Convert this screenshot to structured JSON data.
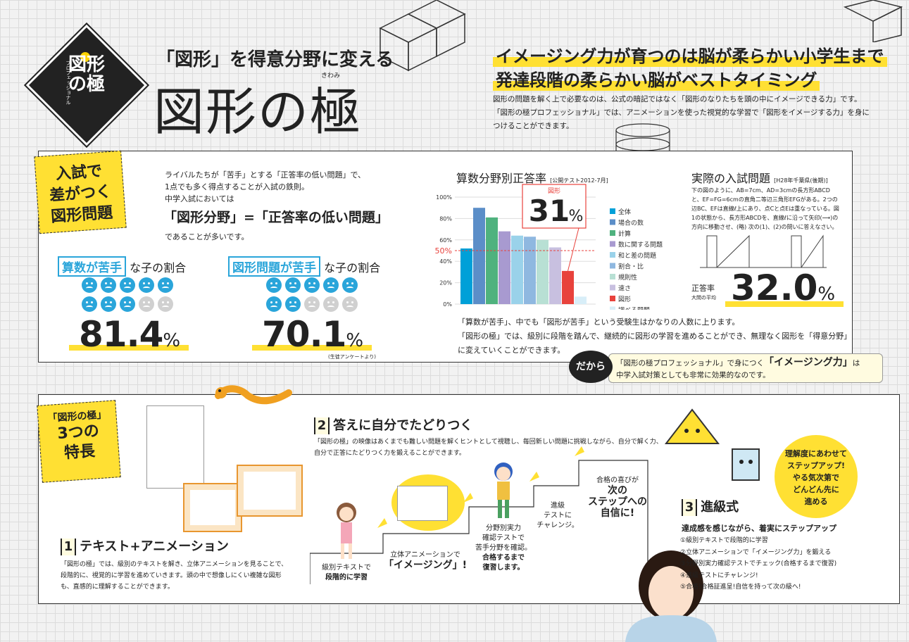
{
  "header": {
    "logo_top": "プロフェッショナル",
    "logo_main": "図形の極",
    "logo_ruby": "きわみ",
    "subtitle": "「図形」を得意分野に変える",
    "title": "図形の極",
    "title_ruby": "きわみ",
    "headline_1": "イメージング力が育つのは脳が柔らかい小学生まで",
    "headline_2": "発達段階の柔らかい脳がベストタイミング",
    "body_1": "図形の問題を解く上で必要なのは、公式の暗記ではなく「図形のなりたちを頭の中にイメージできる力」です。",
    "body_2": "「図形の極プロフェッショナル」では、アニメーションを使った視覚的な学習で「図形をイメージする力」を身につけることができます。"
  },
  "section1": {
    "tag_line1": "入試で",
    "tag_line2": "差がつく",
    "tag_line3": "図形問題",
    "intro_1": "ライバルたちが「苦手」とする「正答率の低い問題」で、",
    "intro_2": "1点でも多く得点することが入試の鉄則。",
    "intro_3": "中学入試においては",
    "formula": "「図形分野」=「正答率の低い問題」",
    "intro_after": "であることが多いです。",
    "ratio1_box": "算数が苦手",
    "ratio1_suffix": "な子の割合",
    "ratio1_value": "81.4",
    "ratio2_box": "図形問題が苦手",
    "ratio2_suffix": "な子の割合",
    "ratio2_value": "70.1",
    "percent": "%",
    "survey_note": "(生徒アンケートより)"
  },
  "chart_data": {
    "type": "bar",
    "title": "算数分野別正答率",
    "subtitle": "[公開テスト2012-7月]",
    "categories": [
      "全体",
      "場合の数",
      "計算",
      "数に関する問題",
      "和と差の問題",
      "割合・比",
      "規則性",
      "速さ",
      "図形",
      "調べる問題"
    ],
    "values": [
      52,
      90,
      81,
      68,
      64,
      63,
      60,
      53,
      31,
      7
    ],
    "colors": [
      "#00a0d8",
      "#5b8ec8",
      "#4fb27e",
      "#a89ad0",
      "#9ad2ea",
      "#8fb8e0",
      "#b8e0d4",
      "#c8c0e0",
      "#e8423c",
      "#d8eef8"
    ],
    "ylim": [
      0,
      100
    ],
    "yticks": [
      "0%",
      "20%",
      "40%",
      "60%",
      "80%",
      "100%"
    ],
    "reference_line": {
      "value": 50,
      "label": "50%"
    },
    "highlight": {
      "label": "図形",
      "value": "31",
      "unit": "%"
    },
    "legend_position": "right"
  },
  "chart_note": {
    "line1": "「算数が苦手」、中でも「図形が苦手」という受験生はかなりの人数に上ります。",
    "line2": "「図形の極」では、級別に段階を踏んで、継続的に図形の学習を進めることができ、無理なく図形を「得意分野」に変えていくことができます。"
  },
  "exam": {
    "title": "実際の入試問題",
    "title_note": "[H28年千葉県(後期)]",
    "text": "下の図のように、AB=7cm、AD=3cmの長方形ABCDと、EF=FG=6cmの直角二等辺三角形EFGがある。2つの辺BC、EFは直線ℓ上にあり、点Cと点Eは重なっている。図1の状態から、長方形ABCDを、直線ℓに沿って矢印(⟶)の方向に移動させ、(略) 次の(1)、(2)の問いに答えなさい。",
    "rate_label": "正答率",
    "rate_sub": "大問の平均",
    "rate_value": "32.0"
  },
  "dakara": {
    "badge": "だから",
    "text_pre": "「図形の極プロフェッショナル」で身につく",
    "text_bold": "「イメージング力」",
    "text_post": "は",
    "text_line2": "中学入試対策としても非常に効果的なのです。"
  },
  "section2": {
    "tag_line1": "「図形の極」",
    "tag_line2": "3つの",
    "tag_line3": "特長",
    "f1_num": "1",
    "f1_title": "テキスト+アニメーション",
    "f1_body": "「図形の極」では、級別のテキストを解き、立体アニメーションを見ることで、段階的に、視覚的に学習を進めていきます。頭の中で想像しにくい複雑な図形も、直感的に理解することができます。",
    "f2_num": "2",
    "f2_title": "答えに自分でたどりつく",
    "f2_body": "「図形の極」の映像はあくまでも難しい問題を解くヒントとして視聴し、毎回新しい問題に挑戦しながら、自分で解く力、自分で正答にたどりつく力を鍛えることができます。",
    "f3_num": "3",
    "f3_title": "進級式",
    "f3_sub": "達成感を感じながら、着実にステップアップ",
    "f3_items": [
      "①級別テキストで段階的に学習",
      "②立体アニメーションで「イメージング力」を鍛える",
      "③分野別実力確認テストでチェック(合格するまで復習)",
      "④進級テストにチャレンジ!",
      "⑤合格!合格証進呈!自信を持って次の級へ!"
    ],
    "badge_line1": "理解度にあわせて",
    "badge_line2": "ステップアップ!",
    "badge_line3": "やる気次第で",
    "badge_line4": "どんどん先に",
    "badge_line5": "進める",
    "step1_a": "級別テキストで",
    "step1_b": "段階的に学習",
    "step2_a": "立体アニメーションで",
    "step2_b": "「イメージング」!",
    "step3_a": "分野別実力",
    "step3_b": "確認テストで",
    "step3_c": "苦手分野を確認。",
    "step3_d": "合格するまで",
    "step3_e": "復習します。",
    "step4_a": "進級",
    "step4_b": "テストに",
    "step4_c": "チャレンジ。",
    "step5_a": "合格の喜びが",
    "step5_b": "次の",
    "step5_c": "ステップへの",
    "step5_d": "自信に!"
  }
}
